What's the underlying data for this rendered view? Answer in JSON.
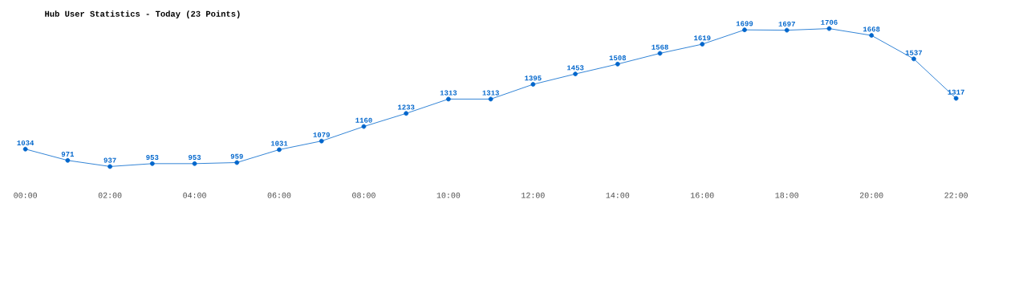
{
  "chart_data": {
    "type": "line",
    "title": "Hub User Statistics - Today (23 Points)",
    "categories": [
      "00:00",
      null,
      "02:00",
      null,
      "04:00",
      null,
      "06:00",
      null,
      "08:00",
      null,
      "10:00",
      null,
      "12:00",
      null,
      "14:00",
      null,
      "16:00",
      null,
      "18:00",
      null,
      "20:00",
      null,
      "22:00"
    ],
    "values": [
      1034,
      971,
      937,
      953,
      953,
      959,
      1031,
      1079,
      1160,
      1233,
      1313,
      1313,
      1395,
      1453,
      1508,
      1568,
      1619,
      1699,
      1697,
      1706,
      1668,
      1537,
      1317
    ],
    "color": "#0066cc",
    "marker": "circle",
    "line_style": "solid",
    "data_labels": true
  }
}
